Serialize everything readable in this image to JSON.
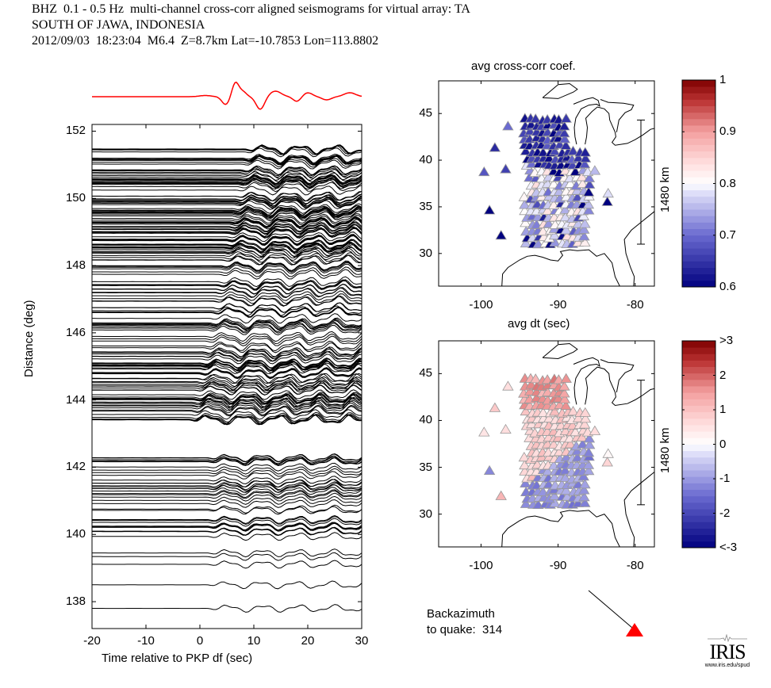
{
  "header": {
    "line1": "BHZ  0.1 - 0.5 Hz  multi-channel cross-corr aligned seismograms for virtual array: TA",
    "line2": "SOUTH OF JAWA, INDONESIA",
    "line3": "2012/09/03  18:23:04  M6.4  Z=8.7km Lat=-10.7853 Lon=113.8802"
  },
  "colors": {
    "trace": "#000000",
    "stack": "#ff0000",
    "quake_marker": "#ff0000",
    "cmap_low": "#00008b",
    "cmap_mid": "#ffffff",
    "cmap_high": "#8b0000"
  },
  "chart_data": [
    {
      "type": "line",
      "name": "record-section",
      "title": "",
      "xlabel": "Time relative to PKP df (sec)",
      "ylabel": "Distance (deg)",
      "xlim": [
        -20,
        30
      ],
      "ylim": [
        137.2,
        152.2
      ],
      "xticks": [
        "-20",
        "-10",
        "0",
        "10",
        "20",
        "30"
      ],
      "yticks": [
        "138",
        "140",
        "142",
        "144",
        "146",
        "148",
        "150",
        "152"
      ],
      "stack_trace": {
        "color": "red",
        "onset_sec": 0,
        "peak_sec": 6.5,
        "trough_sec": 9
      },
      "trace_distance_ranges": [
        [
          137.8,
          138.5
        ],
        [
          138.9,
          142.5
        ],
        [
          143.4,
          151.5
        ]
      ]
    },
    {
      "type": "scatter",
      "name": "map-avg-cross-corr",
      "title": "avg cross-corr coef.",
      "xlabel": "avg dt (sec)",
      "xlim": [
        -105.5,
        -77.5
      ],
      "ylim": [
        26.5,
        48.5
      ],
      "xticks": [
        "-100",
        "-90",
        "-80"
      ],
      "yticks": [
        "30",
        "35",
        "40",
        "45"
      ],
      "scale_bar": "1480 km",
      "colorbar": {
        "range": [
          0.6,
          1.0
        ],
        "ticks": [
          "1",
          "0.9",
          "0.8",
          "0.7",
          "0.6"
        ]
      }
    },
    {
      "type": "scatter",
      "name": "map-avg-dt",
      "title": "avg dt (sec)",
      "xlim": [
        -105.5,
        -77.5
      ],
      "ylim": [
        26.5,
        48.5
      ],
      "xticks": [
        "-100",
        "-90",
        "-80"
      ],
      "yticks": [
        "30",
        "35",
        "40",
        "45"
      ],
      "scale_bar": "1480 km",
      "colorbar": {
        "range": [
          -3,
          3
        ],
        "ticks": [
          ">3",
          "2",
          "1",
          "0",
          "-1",
          "-2",
          "<-3"
        ]
      }
    }
  ],
  "backazimuth": {
    "line1": "Backazimuth",
    "line2": "to quake:  314",
    "value": 314
  },
  "logo": {
    "name": "IRIS",
    "url": "www.iris.edu/spud"
  }
}
